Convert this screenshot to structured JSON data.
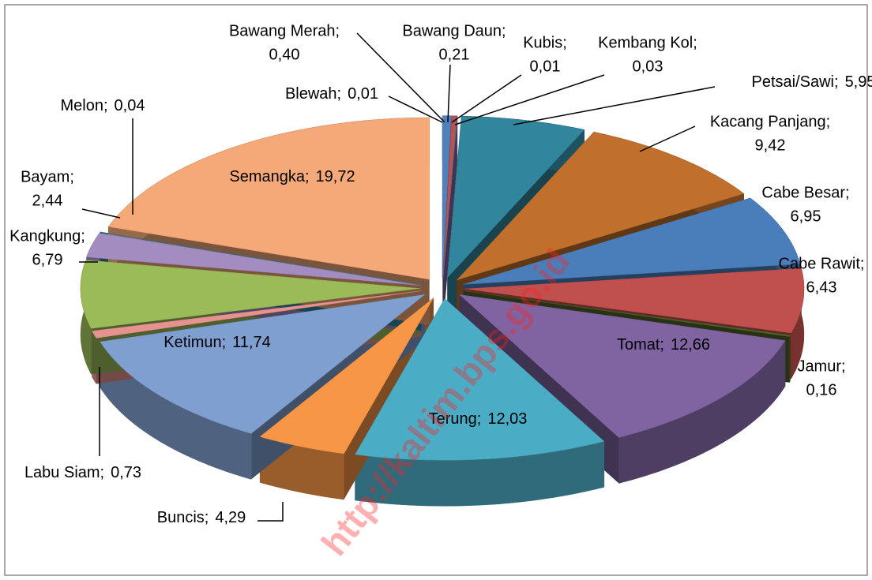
{
  "chart_data": {
    "type": "pie3d",
    "categories": [
      "Blewah;",
      "Bawang Merah;",
      "Bawang Daun;",
      "Kubis;",
      "Kembang Kol;",
      "Petsai/Sawi;",
      "Kacang Panjang;",
      "Cabe Besar;",
      "Cabe Rawit;",
      "Jamur;",
      "Tomat;",
      "Terung;",
      "Buncis;",
      "Ketimun;",
      "Labu Siam;",
      "Kangkung;",
      "Bayam;",
      "Melon;",
      "Semangka;"
    ],
    "values": [
      0.01,
      0.4,
      0.21,
      0.01,
      0.03,
      5.95,
      9.42,
      6.95,
      6.43,
      0.16,
      12.66,
      12.03,
      4.29,
      11.74,
      0.73,
      6.79,
      2.44,
      0.04,
      19.72
    ],
    "value_labels": [
      "0,01",
      "0,40",
      "0,21",
      "0,01",
      "0,03",
      "5,95",
      "9,42",
      "6,95",
      "6,43",
      "0,16",
      "12,66",
      "12,03",
      "4,29",
      "11,74",
      "0,73",
      "6,79",
      "2,44",
      "0,04",
      "19,72"
    ],
    "colors": [
      "#95b3d7",
      "#4f81bd",
      "#c0504d",
      "#9bbb59",
      "#8064a2",
      "#31859c",
      "#c0702c",
      "#4a7ebb",
      "#c0504d",
      "#4f6228",
      "#8064a2",
      "#4bacc6",
      "#f79646",
      "#7f9fd0",
      "#e6938f",
      "#9bbb59",
      "#a28cc0",
      "#31859c",
      "#f5a878"
    ],
    "watermark": "http://kaltim.bps.go.id"
  }
}
